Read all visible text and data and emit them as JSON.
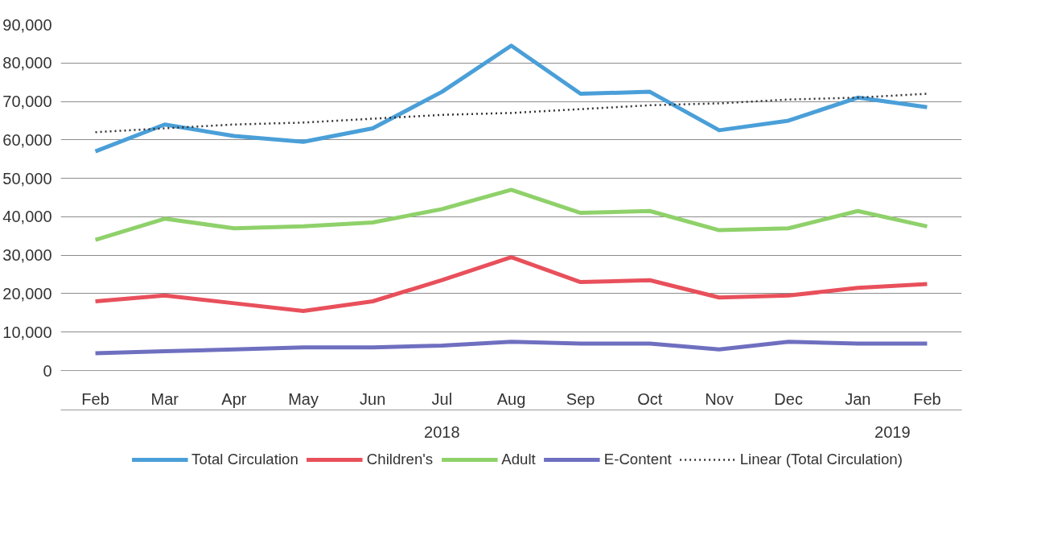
{
  "chart_data": {
    "type": "line",
    "categories": [
      "Feb",
      "Mar",
      "Apr",
      "May",
      "Jun",
      "Jul",
      "Aug",
      "Sep",
      "Oct",
      "Nov",
      "Dec",
      "Jan",
      "Feb"
    ],
    "series": [
      {
        "name": "Total Circulation",
        "color": "#4a9fd8",
        "values": [
          57000,
          64000,
          61000,
          59500,
          63000,
          72500,
          84500,
          72000,
          72500,
          62500,
          65000,
          71000,
          68500
        ]
      },
      {
        "name": "Children's",
        "color": "#e8505b",
        "values": [
          18000,
          19500,
          17500,
          15500,
          18000,
          23500,
          29500,
          23000,
          23500,
          19000,
          19500,
          21500,
          22500
        ]
      },
      {
        "name": "Adult",
        "color": "#8fd16a",
        "values": [
          34000,
          39500,
          37000,
          37500,
          38500,
          42000,
          47000,
          41000,
          41500,
          36500,
          37000,
          41500,
          37500
        ]
      },
      {
        "name": "E-Content",
        "color": "#6f6fc0",
        "values": [
          4500,
          5000,
          5500,
          6000,
          6000,
          6500,
          7500,
          7000,
          7000,
          5500,
          7500,
          7000,
          7000
        ]
      },
      {
        "name": "Linear (Total Circulation)",
        "color": "#333333",
        "line_style": "dotted",
        "values": [
          62000,
          63000,
          64000,
          64500,
          65500,
          66500,
          67000,
          68000,
          69000,
          69500,
          70500,
          71000,
          72000
        ]
      }
    ],
    "annotations": [
      "2018",
      "2019"
    ],
    "ylim": [
      0,
      90000
    ],
    "yticks": [
      {
        "value": 0,
        "label": "0"
      },
      {
        "value": 10000,
        "label": "10,000"
      },
      {
        "value": 20000,
        "label": "20,000"
      },
      {
        "value": 30000,
        "label": "30,000"
      },
      {
        "value": 40000,
        "label": "40,000"
      },
      {
        "value": 50000,
        "label": "50,000"
      },
      {
        "value": 60000,
        "label": "60,000"
      },
      {
        "value": 70000,
        "label": "70,000"
      },
      {
        "value": 80000,
        "label": "80,000"
      },
      {
        "value": 90000,
        "label": "90,000"
      }
    ],
    "grid": "y",
    "legend": "bottom",
    "line_style": "solid",
    "marker": "none"
  }
}
